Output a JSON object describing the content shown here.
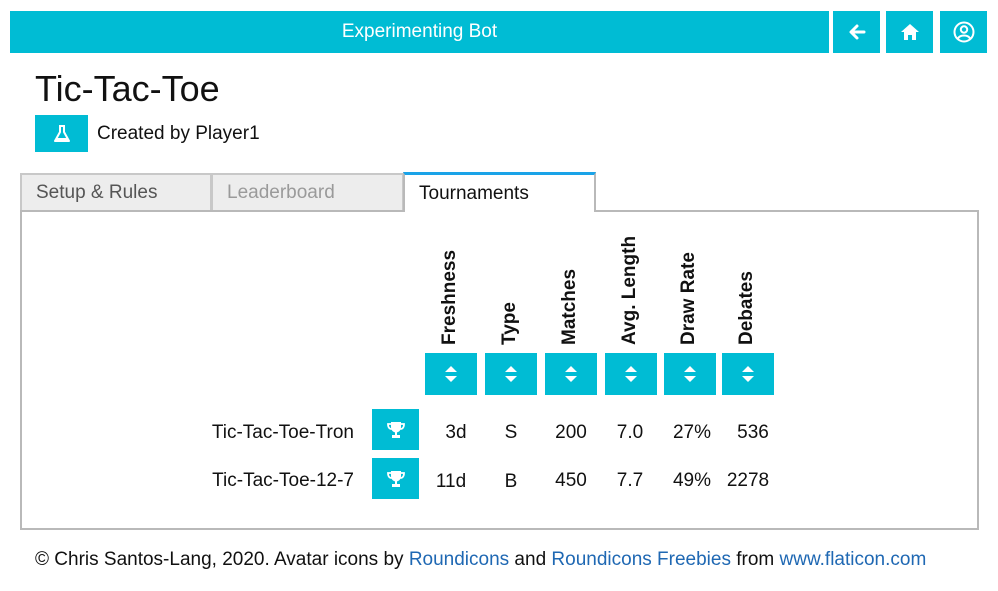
{
  "header": {
    "title": "Experimenting Bot",
    "buttons": [
      {
        "name": "back",
        "icon": "arrow-left-icon"
      },
      {
        "name": "home",
        "icon": "home-icon"
      },
      {
        "name": "account",
        "icon": "user-circle-icon"
      }
    ],
    "accent_color": "#00bcd4"
  },
  "game": {
    "title": "Tic-Tac-Toe",
    "creator_icon": "flask-icon",
    "creator_text": "Created by Player1"
  },
  "tabs": [
    {
      "label": "Setup & Rules",
      "state": "inactive"
    },
    {
      "label": "Leaderboard",
      "state": "disabled"
    },
    {
      "label": "Tournaments",
      "state": "active"
    }
  ],
  "table": {
    "columns": [
      "Freshness",
      "Type",
      "Matches",
      "Avg. Length",
      "Draw Rate",
      "Debates"
    ],
    "sort_icon": "sort-up-down-icon",
    "row_icon": "trophy-icon",
    "rows": [
      {
        "name": "Tic-Tac-Toe-Tron",
        "cells": [
          "3d",
          "S",
          "200",
          "7.0",
          "27%",
          "536"
        ]
      },
      {
        "name": "Tic-Tac-Toe-12-7",
        "cells": [
          "11d",
          "B",
          "450",
          "7.7",
          "49%",
          "2278"
        ]
      }
    ]
  },
  "footer": {
    "prefix": "© Chris Santos-Lang, 2020. Avatar icons by ",
    "link1": "Roundicons",
    "and": " and ",
    "link2": "Roundicons Freebies",
    "from": " from ",
    "link3": "www.flaticon.com"
  }
}
